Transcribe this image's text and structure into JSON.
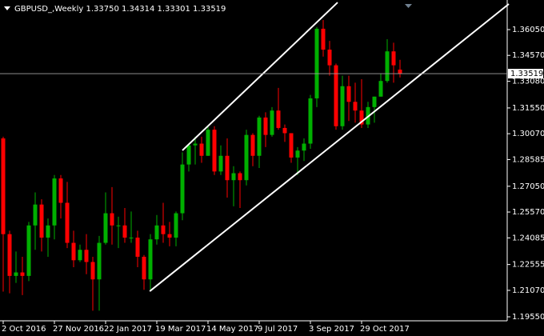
{
  "chart_data": {
    "type": "candlestick",
    "title": "GBPUSD_,Weekly  1.33750 1.34314 1.33301 1.33519",
    "categories": [
      "2 Oct 2016",
      null,
      null,
      null,
      null,
      null,
      null,
      null,
      "27 Nov 2016",
      null,
      null,
      null,
      null,
      null,
      null,
      null,
      "22 Jan 2017",
      null,
      null,
      null,
      null,
      null,
      null,
      null,
      "19 Mar 2017",
      null,
      null,
      null,
      null,
      null,
      null,
      null,
      "14 May 2017",
      null,
      null,
      null,
      null,
      null,
      null,
      null,
      "9 Jul 2017",
      null,
      null,
      null,
      null,
      null,
      null,
      null,
      "3 Sep 2017",
      null,
      null,
      null,
      null,
      null,
      null,
      null,
      "29 Oct 2017",
      null,
      null,
      null,
      null,
      null,
      null
    ],
    "open": [
      1.298,
      1.243,
      1.219,
      1.221,
      1.219,
      1.248,
      1.26,
      1.241,
      1.248,
      1.275,
      1.261,
      1.238,
      1.228,
      1.234,
      1.227,
      1.217,
      1.238,
      1.255,
      1.248,
      1.248,
      1.241,
      1.241,
      1.23,
      1.217,
      1.24,
      1.248,
      1.243,
      1.241,
      1.255,
      1.283,
      1.294,
      1.295,
      1.288,
      1.303,
      1.279,
      1.288,
      1.274,
      1.278,
      1.274,
      1.3,
      1.288,
      1.31,
      1.3,
      1.314,
      1.304,
      1.301,
      1.287,
      1.291,
      1.295,
      1.321,
      1.361,
      1.349,
      1.34,
      1.305,
      1.328,
      1.319,
      1.314,
      1.306,
      1.316,
      1.322,
      1.331,
      1.348,
      1.3375
    ],
    "high": [
      1.299,
      1.245,
      1.233,
      1.23,
      1.25,
      1.267,
      1.263,
      1.252,
      1.277,
      1.277,
      1.273,
      1.245,
      1.237,
      1.243,
      1.23,
      1.242,
      1.267,
      1.27,
      1.253,
      1.258,
      1.256,
      1.245,
      1.231,
      1.243,
      1.254,
      1.261,
      1.25,
      1.256,
      1.29,
      1.295,
      1.299,
      1.299,
      1.305,
      1.305,
      1.294,
      1.298,
      1.282,
      1.279,
      1.303,
      1.301,
      1.311,
      1.313,
      1.316,
      1.327,
      1.306,
      1.301,
      1.293,
      1.298,
      1.323,
      1.362,
      1.366,
      1.354,
      1.341,
      1.334,
      1.334,
      1.33,
      1.332,
      1.319,
      1.322,
      1.335,
      1.355,
      1.353,
      1.34314
    ],
    "low": [
      1.21,
      1.209,
      1.215,
      1.208,
      1.216,
      1.234,
      1.233,
      1.23,
      1.24,
      1.252,
      1.235,
      1.224,
      1.227,
      1.22,
      1.199,
      1.199,
      1.237,
      1.237,
      1.235,
      1.238,
      1.238,
      1.224,
      1.211,
      1.211,
      1.237,
      1.238,
      1.236,
      1.236,
      1.251,
      1.279,
      1.283,
      1.284,
      1.288,
      1.277,
      1.277,
      1.264,
      1.259,
      1.258,
      1.271,
      1.282,
      1.281,
      1.293,
      1.299,
      1.303,
      1.296,
      1.284,
      1.277,
      1.285,
      1.292,
      1.316,
      1.345,
      1.334,
      1.303,
      1.303,
      1.308,
      1.307,
      1.304,
      1.304,
      1.307,
      1.322,
      1.33,
      1.33,
      1.33301
    ],
    "close": [
      1.243,
      1.219,
      1.221,
      1.219,
      1.248,
      1.26,
      1.241,
      1.248,
      1.275,
      1.261,
      1.238,
      1.228,
      1.234,
      1.227,
      1.217,
      1.238,
      1.255,
      1.248,
      1.248,
      1.241,
      1.241,
      1.23,
      1.217,
      1.24,
      1.248,
      1.243,
      1.241,
      1.255,
      1.283,
      1.294,
      1.295,
      1.288,
      1.303,
      1.279,
      1.288,
      1.274,
      1.278,
      1.274,
      1.3,
      1.288,
      1.31,
      1.3,
      1.314,
      1.304,
      1.301,
      1.287,
      1.291,
      1.295,
      1.321,
      1.361,
      1.349,
      1.34,
      1.305,
      1.328,
      1.319,
      1.314,
      1.306,
      1.316,
      1.322,
      1.331,
      1.348,
      1.34,
      1.33519
    ],
    "up_color": "#00b000",
    "down_color": "#ff0000",
    "ylim": [
      1.19367,
      1.37751
    ],
    "yticks": [
      {
        "value": 1.3605,
        "label": "1.36050"
      },
      {
        "value": 1.3457,
        "label": "1.34570"
      },
      {
        "value": 1.3308,
        "label": "1.33080"
      },
      {
        "value": 1.3155,
        "label": "1.31550"
      },
      {
        "value": 1.3007,
        "label": "1.30070"
      },
      1.28585,
      {
        "value": 1.2705,
        "label": "1.27050"
      },
      {
        "value": 1.2557,
        "label": "1.25570"
      },
      1.24085,
      1.22555,
      {
        "value": 1.2107,
        "label": "1.21070"
      },
      {
        "value": 1.1955,
        "label": "1.19550"
      }
    ],
    "last_price": 1.33519,
    "trendlines": [
      {
        "x": [
          22.9,
          79
        ],
        "y": [
          1.2102,
          1.3752
        ]
      },
      {
        "x": [
          28,
          52.25
        ],
        "y": [
          1.2911,
          1.3761
        ]
      }
    ],
    "trendline_color": "#ffffff",
    "grid": false
  }
}
